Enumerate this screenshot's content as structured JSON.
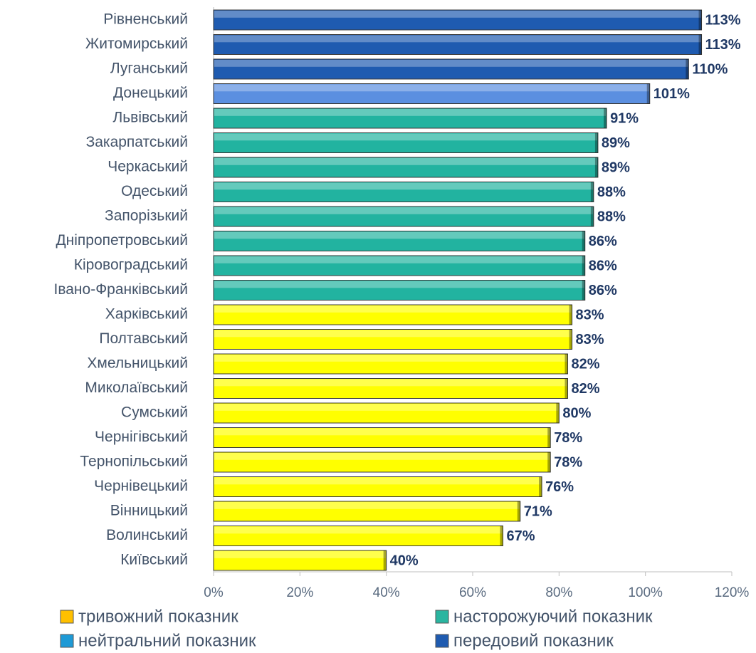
{
  "chart_data": {
    "type": "bar",
    "orientation": "horizontal",
    "categories": [
      "Рівненський",
      "Житомирський",
      "Луганський",
      "Донецький",
      "Львівський",
      "Закарпатський",
      "Черкаський",
      "Одеський",
      "Запорізький",
      "Дніпропетровський",
      "Кіровоградський",
      "Івано-Франківський",
      "Харківський",
      "Полтавський",
      "Хмельницький",
      "Миколаївський",
      "Сумський",
      "Чернігівський",
      "Тернопільський",
      "Чернівецький",
      "Вінницький",
      "Волинський",
      "Київський"
    ],
    "values": [
      113,
      113,
      110,
      101,
      91,
      89,
      89,
      88,
      88,
      86,
      86,
      86,
      83,
      83,
      82,
      82,
      80,
      78,
      78,
      76,
      71,
      67,
      40
    ],
    "value_labels": [
      "113%",
      "113%",
      "110%",
      "101%",
      "91%",
      "89%",
      "89%",
      "88%",
      "88%",
      "86%",
      "86%",
      "86%",
      "83%",
      "83%",
      "82%",
      "82%",
      "80%",
      "78%",
      "78%",
      "76%",
      "71%",
      "67%",
      "40%"
    ],
    "colors": [
      "#1f5bb0",
      "#1f5bb0",
      "#1f5bb0",
      "#5b8fe0",
      "#22b3a0",
      "#22b3a0",
      "#22b3a0",
      "#22b3a0",
      "#22b3a0",
      "#22b3a0",
      "#22b3a0",
      "#22b3a0",
      "#ffff00",
      "#ffff00",
      "#ffff00",
      "#ffff00",
      "#ffff00",
      "#ffff00",
      "#ffff00",
      "#ffff00",
      "#ffff00",
      "#ffff00",
      "#ffff00"
    ],
    "xlim": [
      0,
      120
    ],
    "xticks": [
      {
        "value": 0,
        "label": "0%"
      },
      {
        "value": 20,
        "label": "20%"
      },
      {
        "value": 40,
        "label": "40%"
      },
      {
        "value": 60,
        "label": "60%"
      },
      {
        "value": 80,
        "label": "80%"
      },
      {
        "value": 100,
        "label": "100%"
      },
      {
        "value": 120,
        "label": "120%"
      }
    ],
    "grid": false,
    "legend": [
      {
        "name": "тривожний показник",
        "color": "#ffc000"
      },
      {
        "name": "насторожуючий показник",
        "color": "#2ab5a0"
      },
      {
        "name": "нейтральний показник",
        "color": "#1e9ad6"
      },
      {
        "name": "передовий показник",
        "color": "#1f5bb0"
      }
    ]
  }
}
